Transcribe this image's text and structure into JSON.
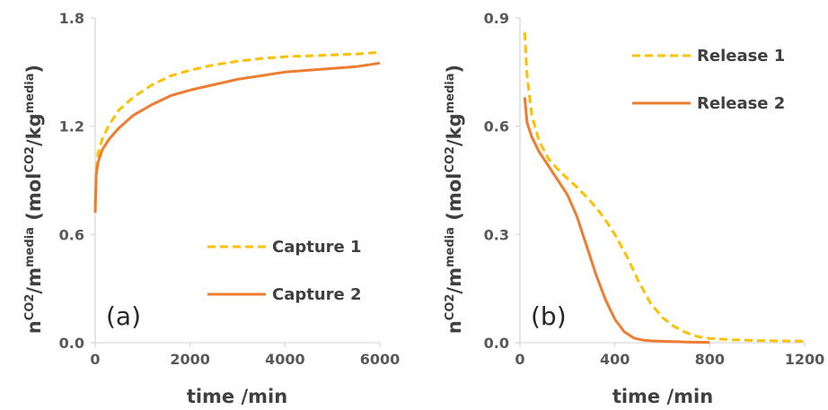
{
  "chart_data": [
    {
      "type": "line",
      "panel_label": "(a)",
      "xlabel": "time /min",
      "ylabel": {
        "n": "n",
        "n_sup": "CO2",
        "slash": "/m",
        "m_sup": "media",
        "unit_open": " (mol",
        "mol_sup": "CO2",
        "unit_mid": "/kg",
        "kg_sup": "media",
        "unit_close": ")"
      },
      "xlim": [
        0,
        6000
      ],
      "ylim": [
        0,
        1.8
      ],
      "xticks": [
        0,
        2000,
        4000,
        6000
      ],
      "yticks": [
        0.0,
        0.6,
        1.2,
        1.8
      ],
      "xtick_labels": [
        "0",
        "2000",
        "4000",
        "6000"
      ],
      "ytick_labels": [
        "0.0",
        "0.6",
        "1.2",
        "1.8"
      ],
      "grid": false,
      "legend_position": "bottom-right",
      "series": [
        {
          "name": "Capture 1",
          "style": "dashed",
          "color": "#FFC000",
          "x": [
            0,
            20,
            60,
            150,
            300,
            500,
            800,
            1200,
            1600,
            2000,
            2500,
            3000,
            3500,
            4000,
            4500,
            5000,
            5500,
            6000
          ],
          "y": [
            0.75,
            0.95,
            1.05,
            1.13,
            1.21,
            1.29,
            1.36,
            1.43,
            1.48,
            1.51,
            1.54,
            1.56,
            1.575,
            1.585,
            1.59,
            1.595,
            1.6,
            1.61
          ]
        },
        {
          "name": "Capture 2",
          "style": "solid",
          "color": "#ED7D31",
          "x": [
            0,
            20,
            60,
            150,
            300,
            500,
            800,
            1200,
            1600,
            2000,
            2500,
            3000,
            3500,
            4000,
            4500,
            5000,
            5500,
            6000
          ],
          "y": [
            0.72,
            0.93,
            1.0,
            1.07,
            1.13,
            1.19,
            1.26,
            1.32,
            1.37,
            1.4,
            1.43,
            1.46,
            1.48,
            1.5,
            1.51,
            1.52,
            1.53,
            1.55
          ]
        }
      ]
    },
    {
      "type": "line",
      "panel_label": "(b)",
      "xlabel": "time /min",
      "ylabel": {
        "n": "n",
        "n_sup": "CO2",
        "slash": "/m",
        "m_sup": "media",
        "unit_open": " (mol",
        "mol_sup": "CO2",
        "unit_mid": "/kg",
        "kg_sup": "media",
        "unit_close": ")"
      },
      "xlim": [
        0,
        1200
      ],
      "ylim": [
        0,
        0.9
      ],
      "xticks": [
        0,
        400,
        800,
        1200
      ],
      "yticks": [
        0.0,
        0.3,
        0.6,
        0.9
      ],
      "xtick_labels": [
        "0",
        "400",
        "800",
        "1200"
      ],
      "ytick_labels": [
        "0.0",
        "0.3",
        "0.6",
        "0.9"
      ],
      "grid": false,
      "legend_position": "top-right",
      "series": [
        {
          "name": "Release 1",
          "style": "dashed",
          "color": "#FFC000",
          "x": [
            20,
            30,
            50,
            80,
            120,
            160,
            200,
            250,
            300,
            350,
            400,
            450,
            500,
            550,
            600,
            650,
            700,
            750,
            800,
            900,
            1000,
            1100,
            1200
          ],
          "y": [
            0.86,
            0.74,
            0.63,
            0.56,
            0.51,
            0.48,
            0.455,
            0.425,
            0.39,
            0.35,
            0.3,
            0.24,
            0.17,
            0.11,
            0.07,
            0.045,
            0.028,
            0.017,
            0.012,
            0.008,
            0.006,
            0.005,
            0.004
          ]
        },
        {
          "name": "Release 2",
          "style": "solid",
          "color": "#ED7D31",
          "x": [
            20,
            30,
            50,
            80,
            120,
            160,
            200,
            240,
            280,
            320,
            360,
            400,
            440,
            480,
            520,
            560,
            600,
            700,
            800
          ],
          "y": [
            0.68,
            0.61,
            0.57,
            0.53,
            0.49,
            0.45,
            0.41,
            0.35,
            0.27,
            0.19,
            0.12,
            0.065,
            0.03,
            0.013,
            0.007,
            0.005,
            0.004,
            0.002,
            0.001
          ]
        }
      ]
    }
  ]
}
